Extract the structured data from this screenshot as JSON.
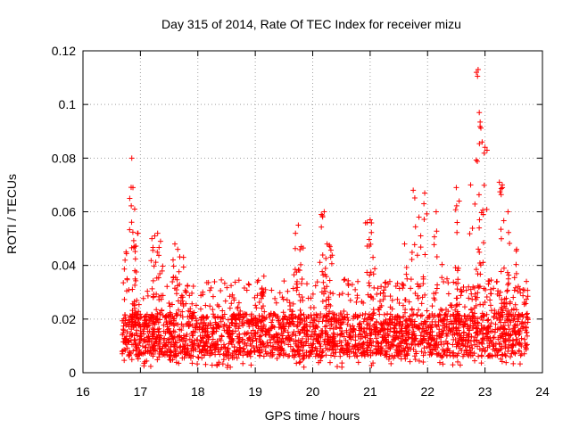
{
  "chart_data": {
    "type": "scatter",
    "title": "Day 315 of 2014, Rate Of TEC Index for receiver mizu",
    "xlabel": "GPS time / hours",
    "ylabel": "ROTI / TECUs",
    "xlim": [
      16,
      24
    ],
    "ylim": [
      0,
      0.12
    ],
    "x_ticks": [
      "16",
      "17",
      "18",
      "19",
      "20",
      "21",
      "22",
      "23",
      "24"
    ],
    "y_ticks": [
      "0",
      "0.02",
      "0.04",
      "0.06",
      "0.08",
      "0.1",
      "0.12"
    ],
    "grid": true,
    "marker": "plus",
    "color": "#ff0000",
    "series": [
      {
        "name": "ROTI",
        "x": [
          16.75,
          16.85,
          16.87,
          16.9,
          16.95,
          17.2,
          17.25,
          17.3,
          17.35,
          17.6,
          17.65,
          17.75,
          18.6,
          19.15,
          19.7,
          19.75,
          19.8,
          20.15,
          20.2,
          20.25,
          20.3,
          20.95,
          21.0,
          21.05,
          21.6,
          21.75,
          21.85,
          21.95,
          22.15,
          22.5,
          22.55,
          22.75,
          22.85,
          22.88,
          22.9,
          22.95,
          23.0,
          23.25,
          23.3,
          23.4,
          23.55
        ],
        "y": [
          0.045,
          0.08,
          0.069,
          0.061,
          0.052,
          0.05,
          0.051,
          0.052,
          0.049,
          0.048,
          0.046,
          0.043,
          0.029,
          0.036,
          0.052,
          0.055,
          0.047,
          0.059,
          0.06,
          0.048,
          0.047,
          0.056,
          0.057,
          0.043,
          0.048,
          0.068,
          0.058,
          0.067,
          0.06,
          0.069,
          0.064,
          0.07,
          0.112,
          0.113,
          0.097,
          0.086,
          0.084,
          0.071,
          0.07,
          0.06,
          0.046
        ]
      }
    ],
    "dense_band": {
      "x_range": [
        16.68,
        23.75
      ],
      "y_range": [
        0.002,
        0.035
      ],
      "typical": 0.012
    }
  }
}
